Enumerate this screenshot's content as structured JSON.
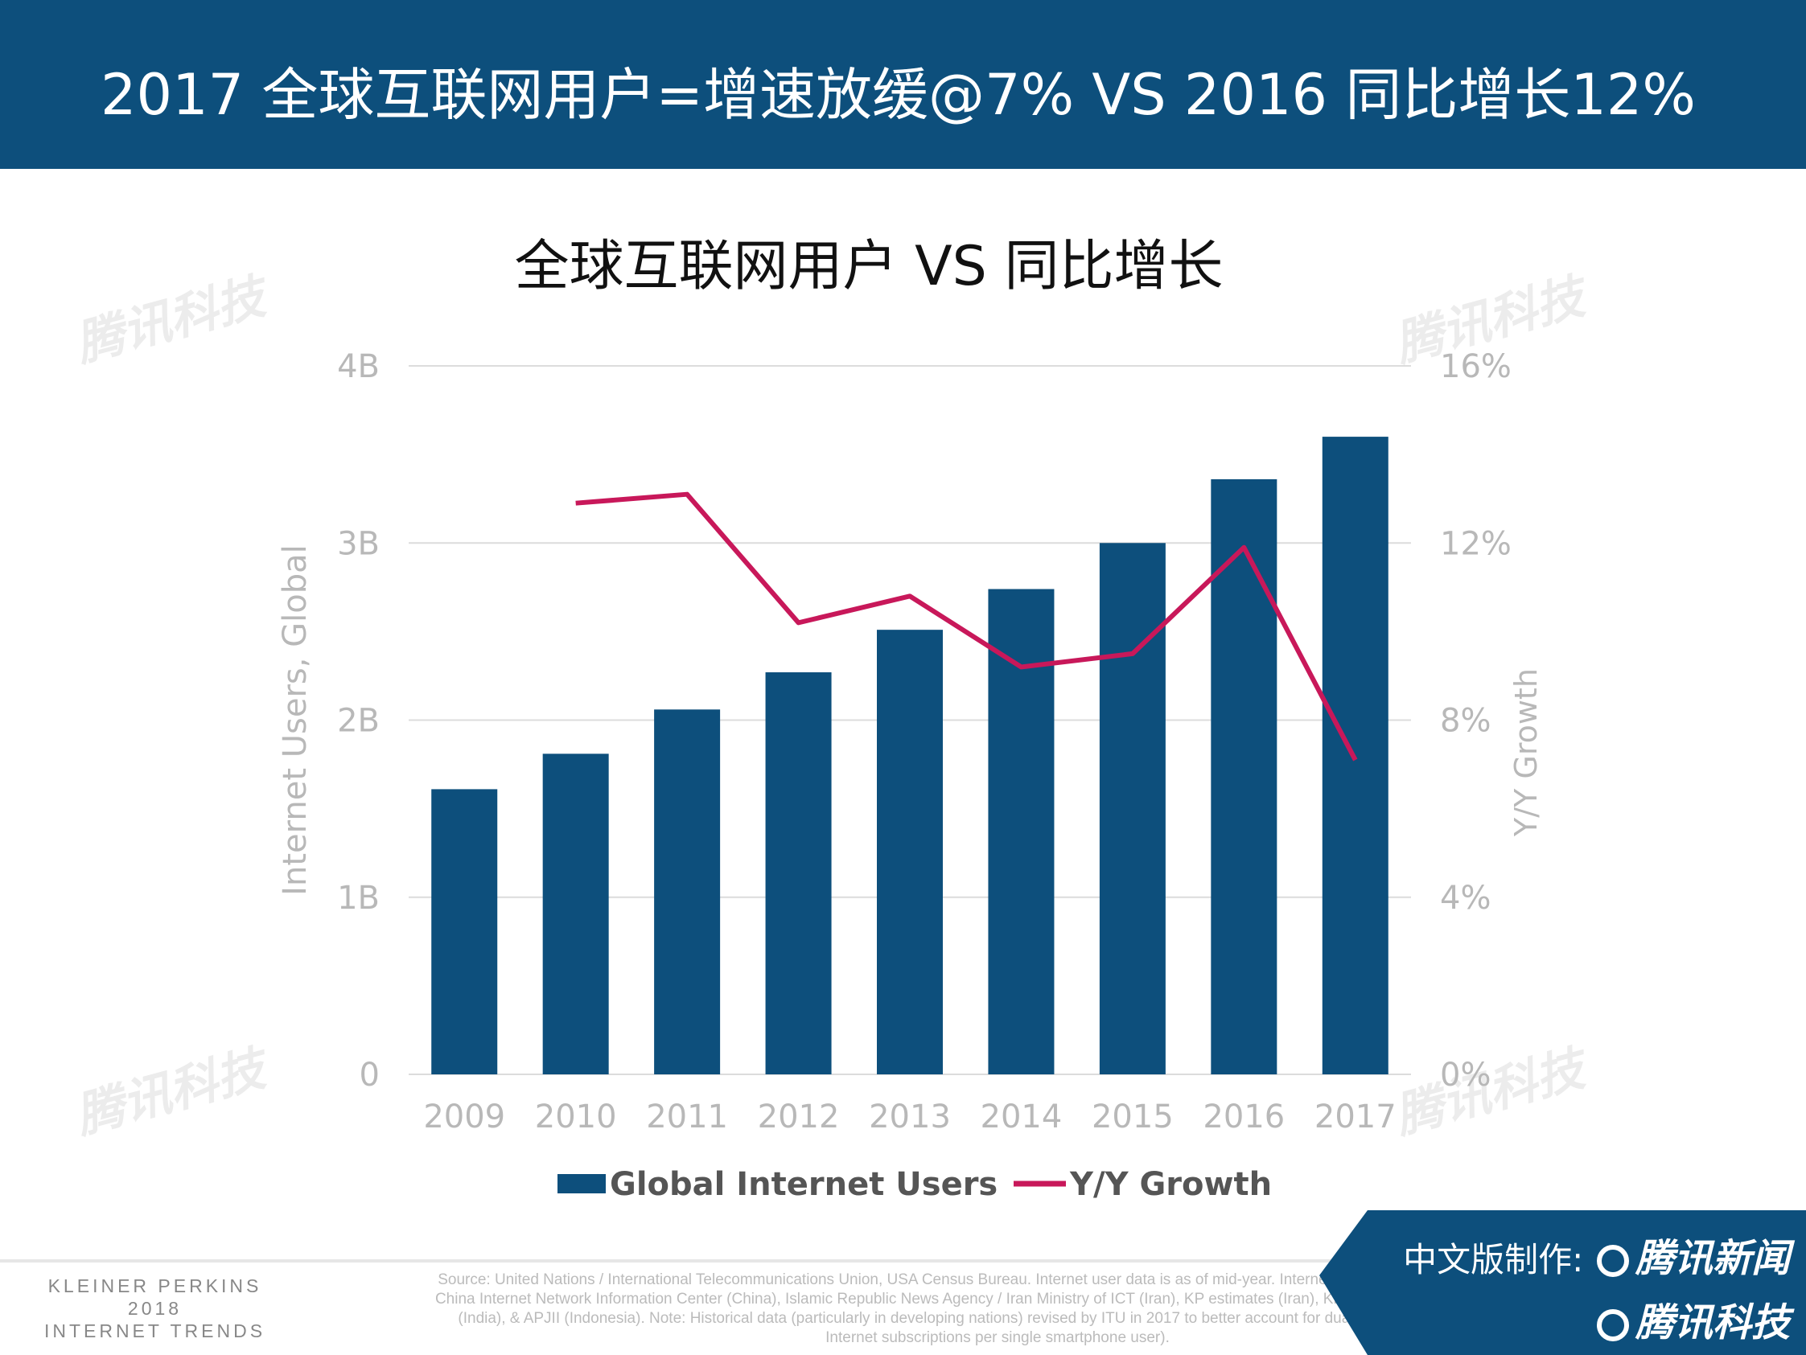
{
  "header": {
    "title": "2017 全球互联网用户=增速放缓@7% VS 2016 同比增长12%"
  },
  "watermark": "腾讯科技",
  "chart_data": {
    "type": "bar+line",
    "title": "全球互联网用户 VS 同比增长",
    "categories": [
      "2009",
      "2010",
      "2011",
      "2012",
      "2013",
      "2014",
      "2015",
      "2016",
      "2017"
    ],
    "series": [
      {
        "name": "Global Internet Users",
        "type": "bar",
        "axis": "left",
        "color": "#0d4f7c",
        "values": [
          1.61,
          1.81,
          2.06,
          2.27,
          2.51,
          2.74,
          3.0,
          3.36,
          3.6
        ]
      },
      {
        "name": "Y/Y Growth",
        "type": "line",
        "axis": "right",
        "color": "#c8185a",
        "values": [
          null,
          12.9,
          13.1,
          10.2,
          10.8,
          9.2,
          9.5,
          11.9,
          7.1
        ]
      }
    ],
    "ylabel": "Internet Users, Global",
    "ylabel_right": "Y/Y Growth",
    "ylim": [
      0,
      4
    ],
    "ylim_right": [
      0,
      16
    ],
    "yticks": [
      "0",
      "1B",
      "2B",
      "3B",
      "4B"
    ],
    "yticks_right": [
      "0%",
      "4%",
      "8%",
      "12%",
      "16%"
    ],
    "grid": true,
    "legend": "bottom"
  },
  "footer": {
    "brand": [
      "KLEINER PERKINS",
      "2018",
      "INTERNET TRENDS"
    ],
    "source": "Source: United Nations / International Telecommunications Union, USA Census Bureau. Internet user data is as of mid-year. Internet user data: Pew Research (USA), China Internet Network Information Center (China), Islamic Republic News Agency / Iran Ministry of ICT (Iran), KP estimates (Iran), KP estimates based on IAMAI data (India), & APJII (Indonesia). Note: Historical data (particularly in developing nations) revised by ITU in 2017 to better account for dual-SIM subscriptions (i.e. two Internet subscriptions per single smartphone user).",
    "credit_label": "中文版制作:",
    "credit_1": "腾讯新闻",
    "credit_2": "腾讯科技"
  }
}
